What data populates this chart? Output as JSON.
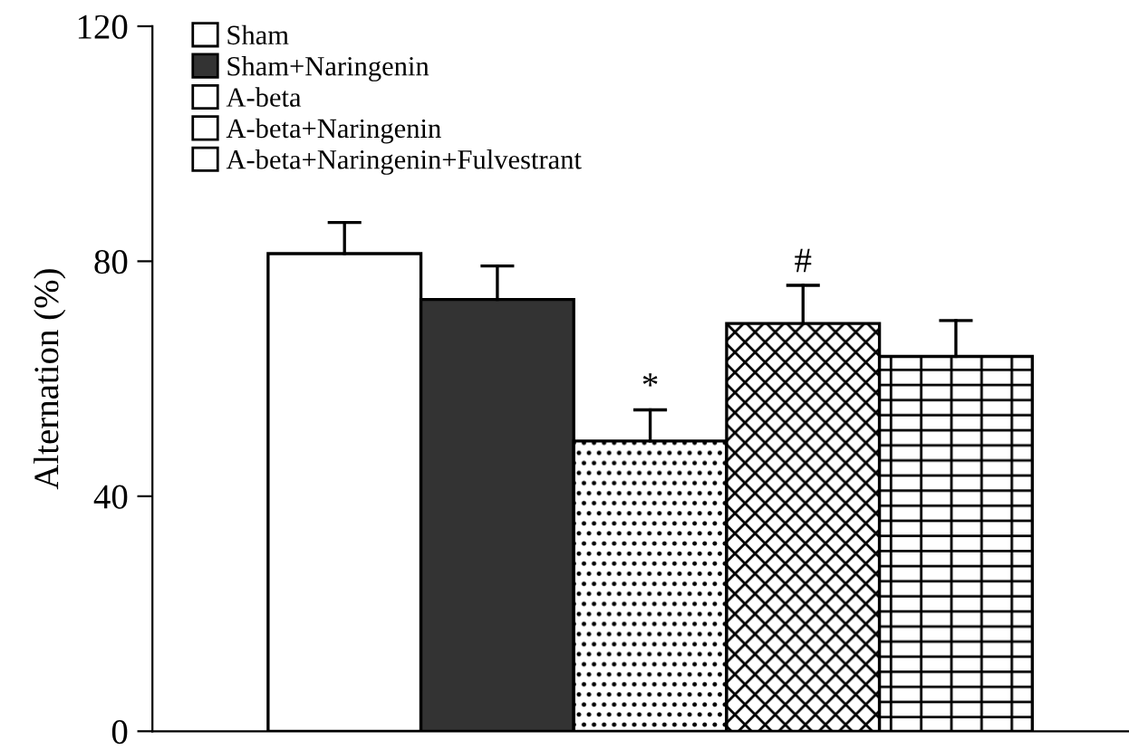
{
  "chart_data": {
    "type": "bar",
    "ylabel": "Alternation (%)",
    "categories": [
      null
    ],
    "series": [
      {
        "name": "Sham",
        "color": "#ffffff",
        "values": [
          81.3
        ],
        "errors": [
          [
            81.3,
            86.6
          ]
        ]
      },
      {
        "name": "Sham+Naringenin",
        "color": "#333333",
        "values": [
          73.5
        ],
        "errors": [
          [
            73.5,
            79.2
          ]
        ]
      },
      {
        "name": "A-beta",
        "color": "#ffffff",
        "values": [
          49.4
        ],
        "errors": [
          [
            49.4,
            54.7
          ]
        ]
      },
      {
        "name": "A-beta+Naringenin",
        "color": "#ffffff",
        "values": [
          69.4
        ],
        "errors": [
          [
            69.4,
            75.9
          ]
        ]
      },
      {
        "name": "A-beta+Naringenin+Fulvestrant",
        "color": "#ffffff",
        "values": [
          63.8
        ],
        "errors": [
          [
            63.8,
            69.9
          ]
        ]
      }
    ],
    "annotations": [
      null,
      null,
      "*",
      "#",
      null
    ],
    "ylim": [
      0,
      120
    ],
    "yticks": [
      0,
      40,
      80,
      120
    ],
    "grid": false,
    "legend": "top left"
  }
}
